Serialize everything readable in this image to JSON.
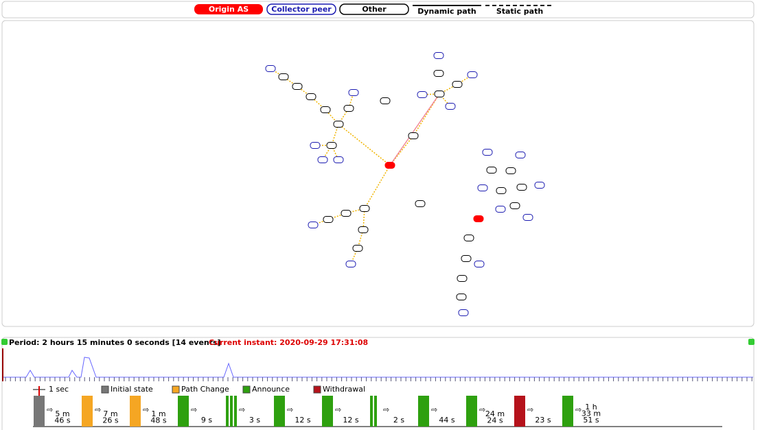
{
  "legend": {
    "origin": "Origin AS",
    "collector": "Collector peer",
    "other": "Other",
    "dynamic": "Dynamic path",
    "static": "Static path"
  },
  "timeline": {
    "period": "Period: 2 hours 15 minutes 0 seconds [14 events]",
    "current": "Current instant: 2020-09-29 17:31:08",
    "scale": "1 sec"
  },
  "event_legend": [
    {
      "label": "Initial state",
      "color": "#777777"
    },
    {
      "label": "Path Change",
      "color": "#f5a623"
    },
    {
      "label": "Announce",
      "color": "#2ea00f"
    },
    {
      "label": "Withdrawal",
      "color": "#b5121b"
    }
  ],
  "events": [
    {
      "color": "#777777",
      "bars": 1,
      "after": [
        "5 m",
        "46 s"
      ]
    },
    {
      "color": "#f5a623",
      "bars": 1,
      "after": [
        "7 m",
        "26 s"
      ]
    },
    {
      "color": "#f5a623",
      "bars": 1,
      "after": [
        "1 m",
        "48 s"
      ]
    },
    {
      "color": "#2ea00f",
      "bars": 1,
      "after": [
        "9 s"
      ]
    },
    {
      "color": "#2ea00f",
      "bars": 3,
      "after": [
        "3 s"
      ]
    },
    {
      "color": "#2ea00f",
      "bars": 1,
      "after": [
        "12 s"
      ]
    },
    {
      "color": "#2ea00f",
      "bars": 1,
      "after": [
        "12 s"
      ]
    },
    {
      "color": "#2ea00f",
      "bars": 2,
      "after": [
        "2 s"
      ]
    },
    {
      "color": "#2ea00f",
      "bars": 1,
      "after": [
        "44 s"
      ]
    },
    {
      "color": "#2ea00f",
      "bars": 1,
      "after": [
        "24 m",
        "24 s"
      ]
    },
    {
      "color": "#b5121b",
      "bars": 1,
      "after": [
        "23 s"
      ]
    },
    {
      "color": "#2ea00f",
      "bars": 1,
      "after": [
        "1 h",
        "33 m",
        "51 s"
      ]
    }
  ]
}
